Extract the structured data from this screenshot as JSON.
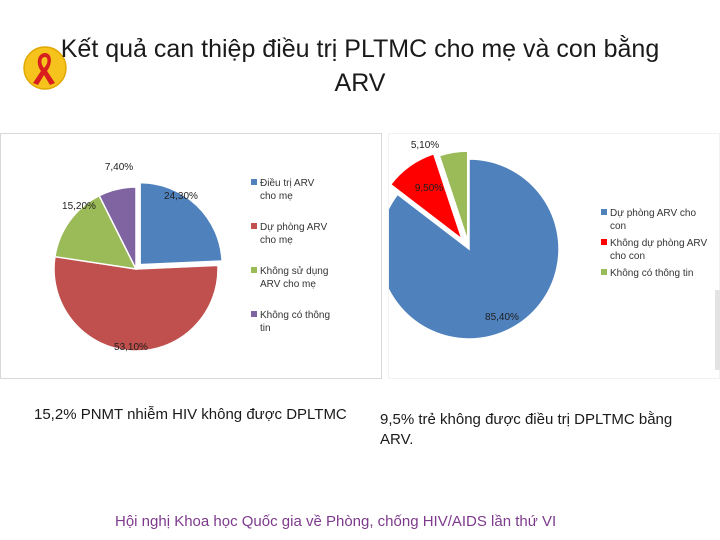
{
  "title": "Kết quả can thiệp điều trị PLTMC cho mẹ và con bằng ARV",
  "captions": {
    "left": "15,2% PNMT nhiễm HIV không được DPLTMC",
    "right": "9,5% trẻ không được điều trị DPLTMC bằng ARV."
  },
  "footer": "Hội nghị Khoa học Quốc gia về Phòng, chống HIV/AIDS lần thứ VI",
  "chart_data": [
    {
      "type": "pie",
      "title": "",
      "labels": [
        "Điều trị ARV cho mẹ",
        "Dự phòng ARV cho mẹ",
        "Không sử dụng ARV cho mẹ",
        "Không có thông tin"
      ],
      "values": [
        24.3,
        53.1,
        15.2,
        7.4
      ],
      "value_labels": [
        "24,30%",
        "53,10%",
        "15,20%",
        "7,40%"
      ],
      "colors": [
        "#4f81bd",
        "#c0504d",
        "#9bbb59",
        "#8064a2"
      ],
      "legend": "right"
    },
    {
      "type": "pie",
      "title": "",
      "labels": [
        "Dự phòng ARV cho con",
        "Không dự phòng ARV cho con",
        "Không có thông tin"
      ],
      "values": [
        85.4,
        9.5,
        5.1
      ],
      "value_labels": [
        "85,40%",
        "9,50%",
        "5,10%"
      ],
      "colors": [
        "#4f81bd",
        "#ff0000",
        "#9bbb59"
      ],
      "legend": "right"
    }
  ]
}
